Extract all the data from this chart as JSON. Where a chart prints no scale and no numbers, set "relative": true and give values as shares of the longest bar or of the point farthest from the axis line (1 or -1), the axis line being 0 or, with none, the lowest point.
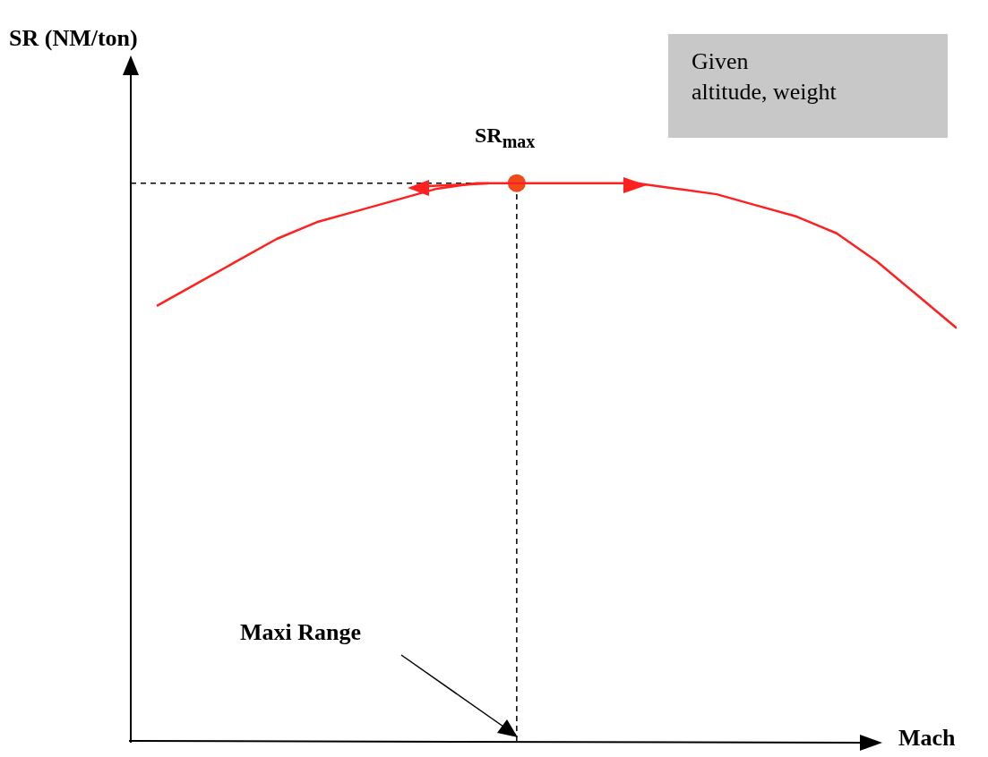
{
  "chart_data": {
    "type": "line",
    "relative": true,
    "xlabel": "Mach",
    "categories": [
      null,
      null,
      null,
      null,
      null,
      null,
      null,
      null,
      null,
      null,
      null,
      null,
      null,
      null,
      null,
      null,
      null,
      null,
      null,
      null,
      null
    ],
    "series": [
      {
        "color": "#ff2020",
        "values": [
          0.78,
          0.82,
          0.86,
          0.9,
          0.93,
          0.95,
          0.97,
          0.99,
          1,
          1,
          1,
          1,
          1,
          0.99,
          0.98,
          0.96,
          0.94,
          0.91,
          0.86,
          0.8,
          0.74
        ]
      }
    ],
    "ref_lines": [
      {
        "axis": "y",
        "value": 1,
        "line_style": "dashed",
        "color": "#000000"
      }
    ],
    "annotations": [
      {
        "text": "SR$_{max}$",
        "y": 1
      },
      "Maxi Range",
      "Given\naltitude, weight",
      "SR (NM/ton)"
    ],
    "marker": "none",
    "grid": false
  }
}
